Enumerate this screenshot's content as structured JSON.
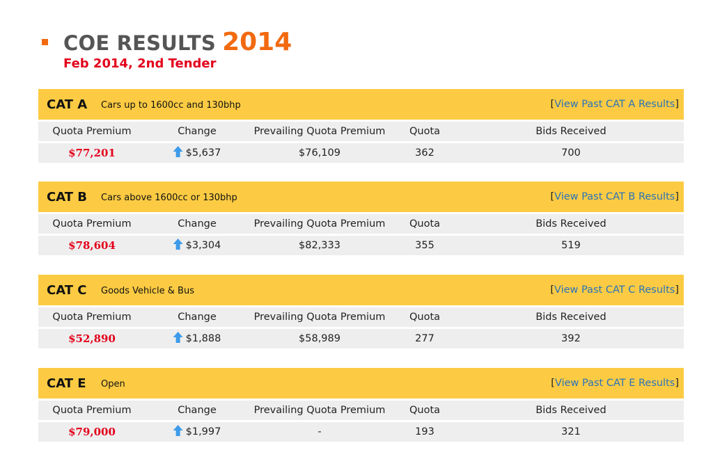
{
  "header": {
    "title": "COE RESULTS",
    "year": "2014",
    "subtitle": "Feb 2014, 2nd Tender"
  },
  "columns": [
    "Quota Premium",
    "Change",
    "Prevailing Quota Premium",
    "Quota",
    "Bids Received"
  ],
  "link_open": "[",
  "link_close": "]",
  "categories": [
    {
      "code": "CAT A",
      "description": "Cars up to 1600cc and 130bhp",
      "link": "View Past CAT A Results",
      "quota_premium": "$77,201",
      "change_icon": "arrow-up-icon",
      "change": "$5,637",
      "prevailing": "$76,109",
      "quota": "362",
      "bids": "700"
    },
    {
      "code": "CAT B",
      "description": "Cars above 1600cc or 130bhp",
      "link": "View Past CAT B Results",
      "quota_premium": "$78,604",
      "change_icon": "arrow-up-icon",
      "change": "$3,304",
      "prevailing": "$82,333",
      "quota": "355",
      "bids": "519"
    },
    {
      "code": "CAT C",
      "description": "Goods Vehicle & Bus",
      "link": "View Past CAT C Results",
      "quota_premium": "$52,890",
      "change_icon": "arrow-up-icon",
      "change": "$1,888",
      "prevailing": "$58,989",
      "quota": "277",
      "bids": "392"
    },
    {
      "code": "CAT E",
      "description": "Open",
      "link": "View Past CAT E Results",
      "quota_premium": "$79,000",
      "change_icon": "arrow-up-icon",
      "change": "$1,997",
      "prevailing": "-",
      "quota": "193",
      "bids": "321"
    }
  ],
  "colors": {
    "accent_orange": "#f26a10",
    "premium_red": "#e3001b",
    "band_yellow": "#fccb43",
    "row_gray": "#eeeeee",
    "link_blue": "#2a73b8",
    "arrow_blue": "#3d9be9"
  }
}
